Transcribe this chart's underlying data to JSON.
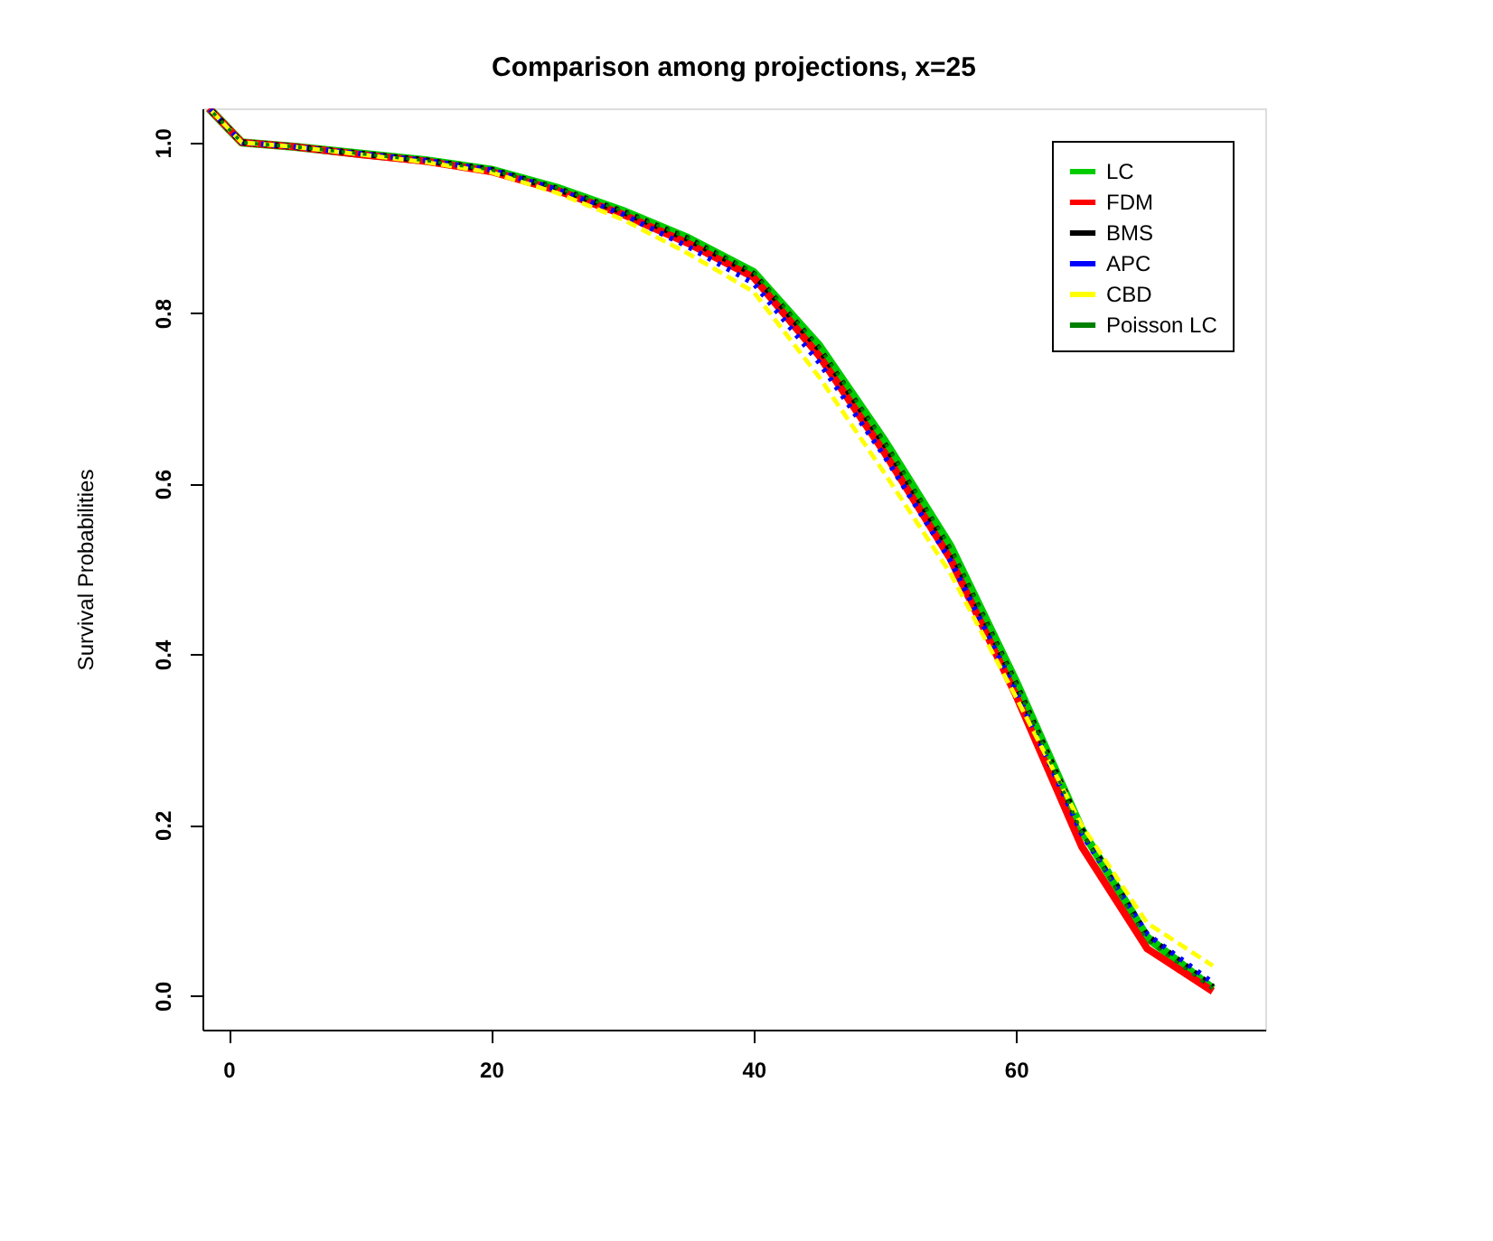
{
  "chart_data": {
    "type": "line",
    "title": "Comparison among projections, x=25",
    "ylabel": "Survival Probabilities",
    "x": [
      -1.5,
      1,
      5,
      10,
      15,
      20,
      25,
      30,
      35,
      40,
      45,
      50,
      55,
      60,
      65,
      70,
      75
    ],
    "series": [
      {
        "name": "LC",
        "color": "#00cc00",
        "line_style": "solid",
        "values": [
          1.04,
          1.0,
          0.995,
          0.987,
          0.979,
          0.968,
          0.947,
          0.92,
          0.888,
          0.848,
          0.762,
          0.65,
          0.527,
          0.368,
          0.195,
          0.068,
          0.008
        ]
      },
      {
        "name": "FDM",
        "color": "#ff0000",
        "line_style": "solid",
        "values": [
          1.04,
          1.0,
          0.995,
          0.986,
          0.978,
          0.966,
          0.944,
          0.916,
          0.882,
          0.842,
          0.75,
          0.636,
          0.512,
          0.352,
          0.175,
          0.055,
          0.005
        ]
      },
      {
        "name": "BMS",
        "color": "#000000",
        "line_style": "dotted",
        "values": [
          1.04,
          1.0,
          0.995,
          0.987,
          0.979,
          0.968,
          0.946,
          0.919,
          0.887,
          0.846,
          0.758,
          0.646,
          0.522,
          0.365,
          0.195,
          0.07,
          0.01
        ]
      },
      {
        "name": "APC",
        "color": "#0000ff",
        "line_style": "dotted",
        "values": [
          1.04,
          1.0,
          0.995,
          0.987,
          0.979,
          0.968,
          0.945,
          0.916,
          0.878,
          0.835,
          0.742,
          0.632,
          0.51,
          0.358,
          0.19,
          0.072,
          0.015
        ]
      },
      {
        "name": "CBD",
        "color": "#ffff00",
        "line_style": "dashed",
        "values": [
          1.04,
          1.0,
          0.995,
          0.986,
          0.977,
          0.965,
          0.941,
          0.91,
          0.87,
          0.825,
          0.725,
          0.612,
          0.495,
          0.35,
          0.2,
          0.085,
          0.035
        ]
      },
      {
        "name": "Poisson LC",
        "color": "#008000",
        "line_style": "dotted",
        "values": [
          1.04,
          1.0,
          0.995,
          0.987,
          0.979,
          0.968,
          0.947,
          0.92,
          0.888,
          0.848,
          0.76,
          0.648,
          0.525,
          0.366,
          0.192,
          0.065,
          0.008
        ]
      }
    ],
    "xlim": [
      -2,
      79
    ],
    "xticks": [
      0,
      20,
      40,
      60
    ],
    "ylim": [
      -0.04,
      1.04
    ],
    "yticks": [
      {
        "value": 0,
        "label": "0.0"
      },
      {
        "value": 0.2,
        "label": "0.2"
      },
      {
        "value": 0.4,
        "label": "0.4"
      },
      {
        "value": 0.6,
        "label": "0.6"
      },
      {
        "value": 0.8,
        "label": "0.8"
      },
      {
        "value": 1,
        "label": "1.0"
      }
    ],
    "legend": "top right",
    "grid": false
  }
}
